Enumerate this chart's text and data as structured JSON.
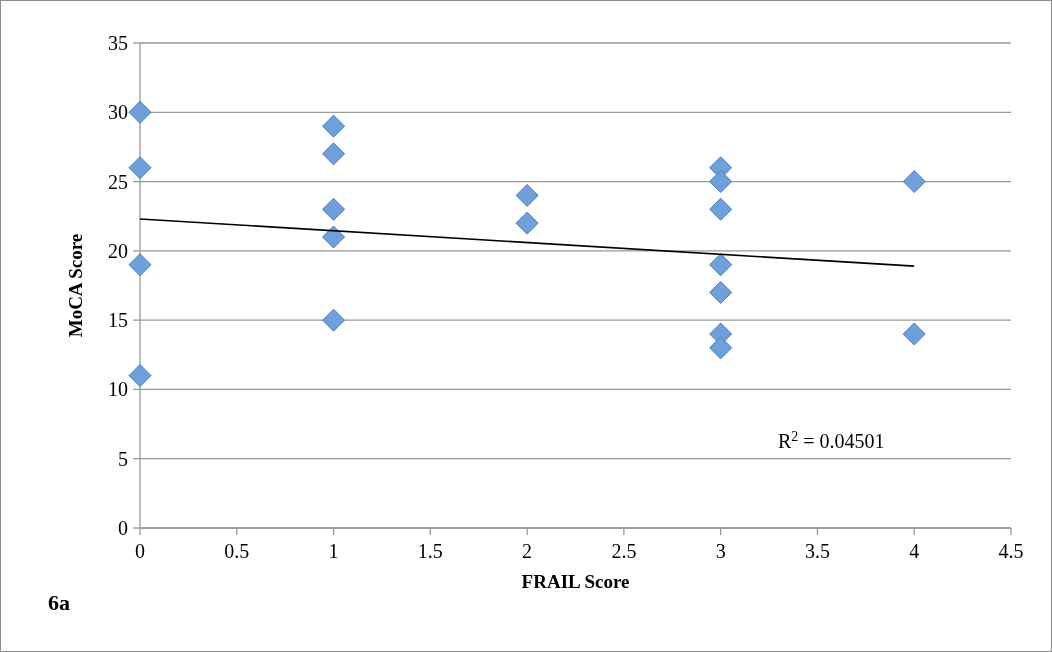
{
  "chart_data": {
    "type": "scatter",
    "xlabel": "FRAIL Score",
    "ylabel": "MoCA Score",
    "xlim": [
      0,
      4.5
    ],
    "xticks": [
      0,
      0.5,
      1,
      1.5,
      2,
      2.5,
      3,
      3.5,
      4,
      4.5
    ],
    "ylim": [
      0,
      35
    ],
    "yticks": [
      0,
      5,
      10,
      15,
      20,
      25,
      30,
      35
    ],
    "grid": "y",
    "series": [
      {
        "color": "#6fa0dc",
        "marker": "diamond",
        "x": [
          0,
          0,
          0,
          0,
          1,
          1,
          1,
          1,
          1,
          2,
          2,
          3,
          3,
          3,
          3,
          3,
          3,
          3,
          4,
          4
        ],
        "values": [
          30,
          26,
          19,
          11,
          29,
          27,
          23,
          21,
          15,
          24,
          22,
          26,
          25,
          23,
          19,
          17,
          14,
          13,
          25,
          14
        ]
      },
      {
        "type": "line",
        "marker": "none",
        "color": "#000000",
        "x": [
          0,
          4
        ],
        "values": [
          22.3,
          18.9
        ]
      }
    ],
    "annotations": [
      "R$^{2}$ = 0.04501",
      "6a"
    ]
  }
}
